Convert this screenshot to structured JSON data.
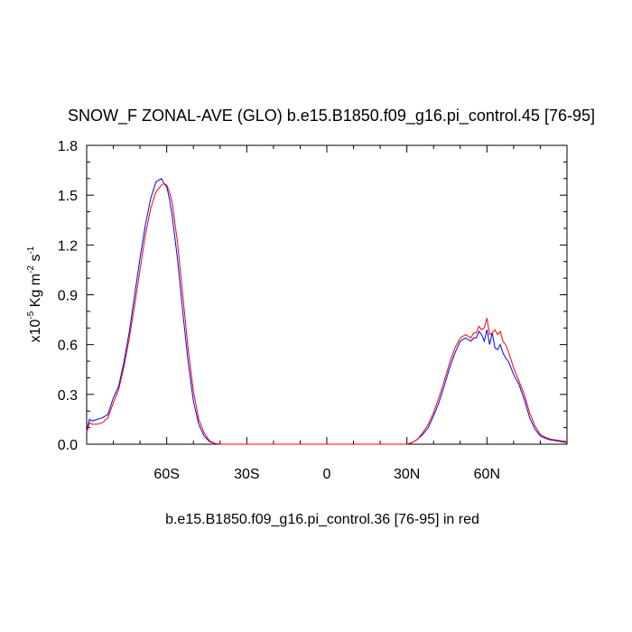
{
  "chart_data": {
    "type": "line",
    "title": "SNOW_F ZONAL-AVE (GLO) b.e15.B1850.f09_g16.pi_control.45 [76-95]",
    "ylabel": {
      "prefix": "x10",
      "exp1": "-5",
      "unit": " Kg m",
      "exp2": "-2",
      "unit2": " s",
      "exp3": "-1"
    },
    "caption": "b.e15.B1850.f09_g16.pi_control.36 [76-95] in red",
    "xlim": [
      -90,
      90
    ],
    "ylim": [
      0,
      1.8
    ],
    "x_ticks": [
      {
        "value": -60,
        "label": "60S"
      },
      {
        "value": -30,
        "label": "30S"
      },
      {
        "value": 0,
        "label": "0"
      },
      {
        "value": 30,
        "label": "30N"
      },
      {
        "value": 60,
        "label": "60N"
      }
    ],
    "y_ticks": [
      {
        "value": 0.0,
        "label": "0.0"
      },
      {
        "value": 0.3,
        "label": "0.3"
      },
      {
        "value": 0.6,
        "label": "0.6"
      },
      {
        "value": 0.9,
        "label": "0.9"
      },
      {
        "value": 1.2,
        "label": "1.2"
      },
      {
        "value": 1.5,
        "label": "1.5"
      },
      {
        "value": 1.8,
        "label": "1.8"
      }
    ],
    "series": [
      {
        "color": "#0000ff",
        "x": [
          -90,
          -89,
          -88,
          -86,
          -84,
          -82,
          -80,
          -78,
          -76,
          -74,
          -72,
          -70,
          -68,
          -66,
          -64,
          -62,
          -61,
          -60,
          -59,
          -58,
          -56,
          -54,
          -52,
          -50,
          -48,
          -46,
          -44,
          -42,
          -40,
          -36,
          -30,
          -20,
          0,
          20,
          30,
          32,
          34,
          36,
          38,
          40,
          42,
          44,
          46,
          48,
          50,
          52,
          54,
          55,
          56,
          57,
          58,
          59,
          60,
          61,
          62,
          63,
          64,
          65,
          66,
          67,
          68,
          70,
          72,
          74,
          76,
          78,
          80,
          82,
          84,
          86,
          88,
          90
        ],
        "y": [
          0.08,
          0.15,
          0.14,
          0.15,
          0.16,
          0.18,
          0.28,
          0.35,
          0.5,
          0.68,
          0.9,
          1.12,
          1.32,
          1.48,
          1.58,
          1.6,
          1.57,
          1.55,
          1.48,
          1.38,
          1.12,
          0.8,
          0.5,
          0.26,
          0.12,
          0.05,
          0.015,
          0.005,
          0.0,
          0.0,
          0.0,
          0.0,
          0.0,
          0.0,
          0.0,
          0.01,
          0.03,
          0.06,
          0.1,
          0.17,
          0.25,
          0.35,
          0.46,
          0.55,
          0.62,
          0.64,
          0.62,
          0.64,
          0.64,
          0.68,
          0.66,
          0.62,
          0.69,
          0.6,
          0.67,
          0.58,
          0.57,
          0.6,
          0.55,
          0.52,
          0.5,
          0.42,
          0.36,
          0.27,
          0.16,
          0.09,
          0.05,
          0.035,
          0.025,
          0.02,
          0.015,
          0.01
        ]
      },
      {
        "color": "#ff0000",
        "x": [
          -90,
          -89,
          -88,
          -86,
          -84,
          -82,
          -80,
          -78,
          -76,
          -74,
          -72,
          -70,
          -68,
          -66,
          -64,
          -62,
          -61,
          -60,
          -59,
          -58,
          -56,
          -54,
          -52,
          -50,
          -48,
          -46,
          -44,
          -42,
          -40,
          -36,
          -30,
          -20,
          0,
          20,
          30,
          32,
          34,
          36,
          38,
          40,
          42,
          44,
          46,
          48,
          50,
          52,
          54,
          55,
          56,
          57,
          58,
          59,
          60,
          61,
          62,
          63,
          64,
          65,
          66,
          67,
          68,
          70,
          72,
          74,
          76,
          78,
          80,
          82,
          84,
          86,
          88,
          90
        ],
        "y": [
          0.07,
          0.13,
          0.12,
          0.12,
          0.13,
          0.16,
          0.25,
          0.33,
          0.47,
          0.64,
          0.84,
          1.05,
          1.26,
          1.42,
          1.52,
          1.56,
          1.57,
          1.56,
          1.52,
          1.46,
          1.22,
          0.9,
          0.58,
          0.32,
          0.15,
          0.07,
          0.02,
          0.005,
          0.0,
          0.0,
          0.0,
          0.0,
          0.0,
          0.0,
          0.0,
          0.01,
          0.03,
          0.07,
          0.12,
          0.19,
          0.28,
          0.38,
          0.49,
          0.58,
          0.64,
          0.66,
          0.64,
          0.67,
          0.67,
          0.71,
          0.69,
          0.7,
          0.76,
          0.66,
          0.67,
          0.69,
          0.66,
          0.68,
          0.62,
          0.6,
          0.56,
          0.46,
          0.38,
          0.3,
          0.19,
          0.11,
          0.06,
          0.04,
          0.03,
          0.025,
          0.02,
          0.015
        ]
      }
    ],
    "grid": false,
    "legend": "none"
  }
}
